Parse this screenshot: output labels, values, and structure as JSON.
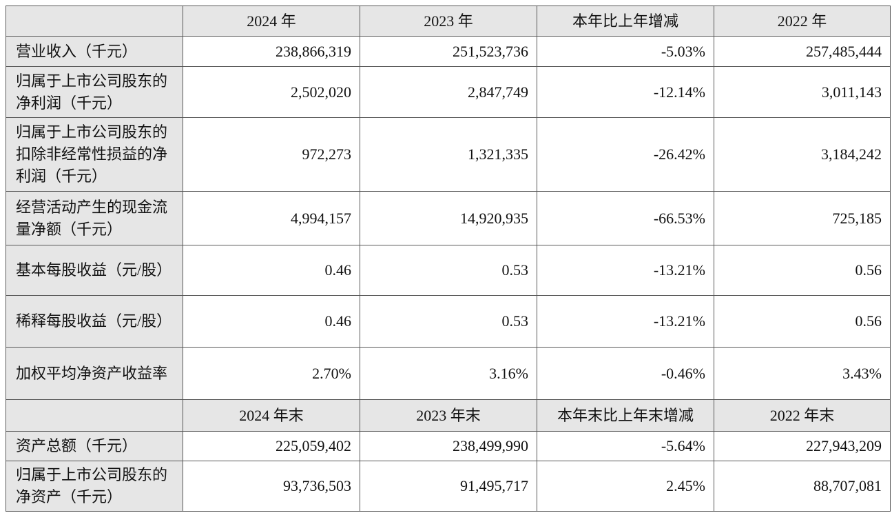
{
  "table": {
    "header": [
      "2024 年",
      "2023 年",
      "本年比上年增减",
      "2022 年"
    ],
    "rows": [
      [
        "营业收入（千元）",
        "238,866,319",
        "251,523,736",
        "-5.03%",
        "257,485,444"
      ],
      [
        "归属于上市公司股东的净利润（千元）",
        "2,502,020",
        "2,847,749",
        "-12.14%",
        "3,011,143"
      ],
      [
        "归属于上市公司股东的扣除非经常性损益的净利润（千元）",
        "972,273",
        "1,321,335",
        "-26.42%",
        "3,184,242"
      ],
      [
        "经营活动产生的现金流量净额（千元）",
        "4,994,157",
        "14,920,935",
        "-66.53%",
        "725,185"
      ],
      [
        "基本每股收益（元/股）",
        "0.46",
        "0.53",
        "-13.21%",
        "0.56"
      ],
      [
        "稀释每股收益（元/股）",
        "0.46",
        "0.53",
        "-13.21%",
        "0.56"
      ],
      [
        "加权平均净资产收益率",
        "2.70%",
        "3.16%",
        "-0.46%",
        "3.43%"
      ]
    ],
    "header2": [
      "2024 年末",
      "2023 年末",
      "本年末比上年末增减",
      "2022 年末"
    ],
    "rows2": [
      [
        "资产总额（千元）",
        "225,059,402",
        "238,499,990",
        "-5.64%",
        "227,943,209"
      ],
      [
        "归属于上市公司股东的净资产（千元）",
        "93,736,503",
        "91,495,717",
        "2.45%",
        "88,707,081"
      ]
    ]
  }
}
